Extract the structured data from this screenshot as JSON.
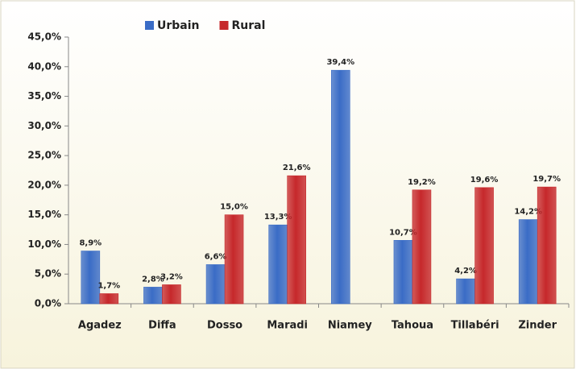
{
  "chart_data": {
    "type": "bar",
    "categories": [
      "Agadez",
      "Diffa",
      "Dosso",
      "Maradi",
      "Niamey",
      "Tahoua",
      "Tillabéri",
      "Zinder"
    ],
    "series": [
      {
        "name": "Urbain",
        "color": "#3a6cc6",
        "values": [
          8.9,
          2.8,
          6.6,
          13.3,
          39.4,
          10.7,
          4.2,
          14.2
        ],
        "value_labels": [
          "8,9%",
          "2,8%",
          "6,6%",
          "13,3%",
          "39,4%",
          "10,7%",
          "4,2%",
          "14,2%"
        ]
      },
      {
        "name": "Rural",
        "color": "#c6282b",
        "values": [
          1.7,
          3.2,
          15.0,
          21.6,
          null,
          19.2,
          19.6,
          19.7
        ],
        "value_labels": [
          "1,7%",
          "3,2%",
          "15,0%",
          "21,6%",
          null,
          "19,2%",
          "19,6%",
          "19,7%"
        ]
      }
    ],
    "ylim": [
      0,
      45
    ],
    "yticks": [
      {
        "value": 0,
        "label": "0,0%"
      },
      {
        "value": 5,
        "label": "5,0%"
      },
      {
        "value": 10,
        "label": "10,0%"
      },
      {
        "value": 15,
        "label": "15,0%"
      },
      {
        "value": 20,
        "label": "20,0%"
      },
      {
        "value": 25,
        "label": "25,0%"
      },
      {
        "value": 30,
        "label": "30,0%"
      },
      {
        "value": 35,
        "label": "35,0%"
      },
      {
        "value": 40,
        "label": "40,0%"
      },
      {
        "value": 45,
        "label": "45,0%"
      }
    ],
    "grid": false,
    "legend": "top"
  }
}
